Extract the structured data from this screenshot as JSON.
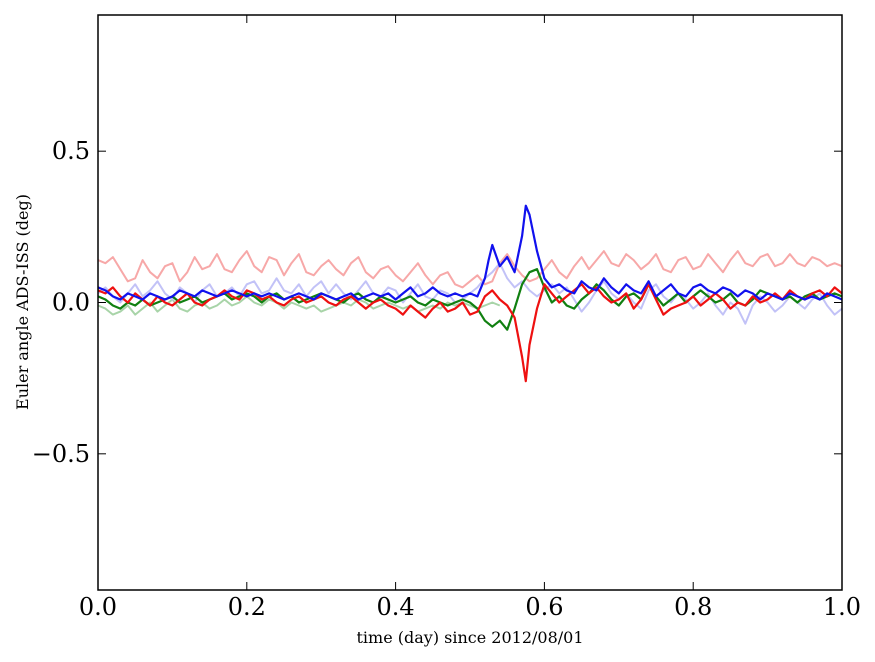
{
  "chart_data": {
    "type": "line",
    "xlabel": "time (day) since 2012/08/01",
    "ylabel": "Euler angle ADS-ISS (deg)",
    "xlim": [
      0.0,
      1.0
    ],
    "ylim": [
      -0.95,
      0.95
    ],
    "xticks": [
      0.0,
      0.2,
      0.4,
      0.6,
      0.8,
      1.0
    ],
    "xtick_labels": [
      "0.0",
      "0.2",
      "0.4",
      "0.6",
      "0.8",
      "1.0"
    ],
    "yticks": [
      -0.5,
      0.0,
      0.5
    ],
    "ytick_labels": [
      "−0.5",
      "0.0",
      "0.5"
    ],
    "grid": false,
    "series": [
      {
        "color": "#f7a8a8",
        "faint": true,
        "x": [
          0.0,
          0.01,
          0.02,
          0.03,
          0.04,
          0.05,
          0.06,
          0.07,
          0.08,
          0.09,
          0.1,
          0.11,
          0.12,
          0.13,
          0.14,
          0.15,
          0.16,
          0.17,
          0.18,
          0.19,
          0.2,
          0.21,
          0.22,
          0.23,
          0.24,
          0.25,
          0.26,
          0.27,
          0.28,
          0.29,
          0.3,
          0.31,
          0.32,
          0.33,
          0.34,
          0.35,
          0.36,
          0.37,
          0.38,
          0.39,
          0.4,
          0.41,
          0.42,
          0.43,
          0.44,
          0.45,
          0.46,
          0.47,
          0.48,
          0.49,
          0.5,
          0.51,
          0.52,
          0.53,
          0.54,
          0.55,
          0.56,
          0.57,
          0.58,
          0.59,
          0.6,
          0.61,
          0.62,
          0.63,
          0.64,
          0.65,
          0.66,
          0.67,
          0.68,
          0.69,
          0.7,
          0.71,
          0.72,
          0.73,
          0.74,
          0.75,
          0.76,
          0.77,
          0.78,
          0.79,
          0.8,
          0.81,
          0.82,
          0.83,
          0.84,
          0.85,
          0.86,
          0.87,
          0.88,
          0.89,
          0.9,
          0.91,
          0.92,
          0.93,
          0.94,
          0.95,
          0.96,
          0.97,
          0.98,
          0.99,
          1.0
        ],
        "y": [
          0.14,
          0.13,
          0.15,
          0.11,
          0.07,
          0.08,
          0.14,
          0.1,
          0.08,
          0.12,
          0.13,
          0.07,
          0.1,
          0.15,
          0.11,
          0.12,
          0.16,
          0.11,
          0.1,
          0.14,
          0.17,
          0.12,
          0.1,
          0.15,
          0.14,
          0.09,
          0.13,
          0.16,
          0.1,
          0.09,
          0.12,
          0.14,
          0.11,
          0.09,
          0.13,
          0.15,
          0.1,
          0.08,
          0.11,
          0.12,
          0.09,
          0.07,
          0.1,
          0.13,
          0.09,
          0.06,
          0.09,
          0.1,
          0.06,
          0.05,
          0.07,
          0.09,
          0.06,
          0.07,
          0.13,
          0.16,
          0.12,
          0.09,
          0.07,
          0.08,
          0.11,
          0.14,
          0.1,
          0.08,
          0.12,
          0.15,
          0.11,
          0.14,
          0.17,
          0.13,
          0.12,
          0.16,
          0.14,
          0.11,
          0.13,
          0.16,
          0.11,
          0.1,
          0.14,
          0.15,
          0.11,
          0.12,
          0.16,
          0.13,
          0.1,
          0.14,
          0.17,
          0.13,
          0.12,
          0.15,
          0.16,
          0.12,
          0.13,
          0.16,
          0.13,
          0.12,
          0.15,
          0.14,
          0.12,
          0.13,
          0.12
        ]
      },
      {
        "color": "#a8d4a8",
        "faint": true,
        "x": [
          0.0,
          0.01,
          0.02,
          0.03,
          0.04,
          0.05,
          0.06,
          0.07,
          0.08,
          0.09,
          0.1,
          0.11,
          0.12,
          0.13,
          0.14,
          0.15,
          0.16,
          0.17,
          0.18,
          0.19,
          0.2,
          0.21,
          0.22,
          0.23,
          0.24,
          0.25,
          0.26,
          0.27,
          0.28,
          0.29,
          0.3,
          0.31,
          0.32,
          0.33,
          0.34,
          0.35,
          0.36,
          0.37,
          0.38,
          0.39,
          0.4,
          0.41,
          0.42,
          0.43,
          0.44,
          0.45,
          0.46,
          0.47,
          0.48,
          0.49,
          0.5,
          0.51,
          0.52,
          0.53,
          0.54
        ],
        "y": [
          -0.01,
          -0.02,
          -0.04,
          -0.03,
          -0.01,
          -0.04,
          -0.02,
          0.0,
          -0.03,
          -0.01,
          0.01,
          -0.02,
          -0.03,
          -0.01,
          0.0,
          -0.02,
          -0.01,
          0.01,
          -0.01,
          0.0,
          0.02,
          0.0,
          -0.01,
          0.01,
          0.0,
          -0.02,
          0.0,
          -0.01,
          -0.02,
          -0.01,
          -0.03,
          -0.02,
          -0.01,
          0.0,
          -0.01,
          0.01,
          0.0,
          -0.02,
          -0.01,
          0.0,
          -0.01,
          -0.02,
          -0.01,
          -0.03,
          -0.02,
          -0.01,
          -0.02,
          0.0,
          -0.01,
          0.0,
          -0.01,
          -0.02,
          -0.01,
          0.0,
          -0.01
        ]
      },
      {
        "color": "#c2c2f7",
        "faint": true,
        "x": [
          0.0,
          0.01,
          0.02,
          0.03,
          0.04,
          0.05,
          0.06,
          0.07,
          0.08,
          0.09,
          0.1,
          0.11,
          0.12,
          0.13,
          0.14,
          0.15,
          0.16,
          0.17,
          0.18,
          0.19,
          0.2,
          0.21,
          0.22,
          0.23,
          0.24,
          0.25,
          0.26,
          0.27,
          0.28,
          0.29,
          0.3,
          0.31,
          0.32,
          0.33,
          0.34,
          0.35,
          0.36,
          0.37,
          0.38,
          0.39,
          0.4,
          0.41,
          0.42,
          0.43,
          0.44,
          0.45,
          0.46,
          0.47,
          0.48,
          0.49,
          0.5,
          0.51,
          0.52,
          0.53,
          0.54,
          0.55,
          0.56,
          0.57,
          0.58,
          0.59,
          0.6,
          0.61,
          0.62,
          0.63,
          0.64,
          0.65,
          0.66,
          0.67,
          0.68,
          0.69,
          0.7,
          0.71,
          0.72,
          0.73,
          0.74,
          0.75,
          0.76,
          0.77,
          0.78,
          0.79,
          0.8,
          0.81,
          0.82,
          0.83,
          0.84,
          0.85,
          0.86,
          0.87,
          0.88,
          0.89,
          0.9,
          0.91,
          0.92,
          0.93,
          0.94,
          0.95,
          0.96,
          0.97,
          0.98,
          0.99,
          1.0
        ],
        "y": [
          0.03,
          0.05,
          0.02,
          0.0,
          0.03,
          0.06,
          0.02,
          0.04,
          0.07,
          0.03,
          0.01,
          0.05,
          0.03,
          0.0,
          0.04,
          0.06,
          0.02,
          0.03,
          0.05,
          0.02,
          0.06,
          0.07,
          0.03,
          0.04,
          0.08,
          0.04,
          0.03,
          0.06,
          0.02,
          0.05,
          0.07,
          0.03,
          0.06,
          0.03,
          0.01,
          0.04,
          0.07,
          0.03,
          0.02,
          0.05,
          0.04,
          0.0,
          0.03,
          0.06,
          0.02,
          0.01,
          0.04,
          0.03,
          0.0,
          0.01,
          0.03,
          0.05,
          0.08,
          0.1,
          0.13,
          0.08,
          0.05,
          0.07,
          0.04,
          0.02,
          0.04,
          0.06,
          0.03,
          0.05,
          0.01,
          -0.03,
          0.0,
          0.04,
          0.07,
          0.03,
          0.01,
          0.03,
          0.0,
          -0.02,
          0.04,
          0.06,
          0.02,
          0.0,
          0.03,
          0.01,
          -0.02,
          0.0,
          0.03,
          -0.01,
          -0.04,
          0.0,
          -0.02,
          -0.07,
          -0.01,
          0.02,
          0.0,
          -0.03,
          -0.01,
          0.02,
          0.0,
          -0.02,
          0.01,
          0.03,
          -0.01,
          -0.04,
          -0.02
        ]
      },
      {
        "color": "#118011",
        "faint": false,
        "x": [
          0.0,
          0.01,
          0.02,
          0.03,
          0.04,
          0.05,
          0.06,
          0.07,
          0.08,
          0.09,
          0.1,
          0.11,
          0.12,
          0.13,
          0.14,
          0.15,
          0.16,
          0.17,
          0.18,
          0.19,
          0.2,
          0.21,
          0.22,
          0.23,
          0.24,
          0.25,
          0.26,
          0.27,
          0.28,
          0.29,
          0.3,
          0.31,
          0.32,
          0.33,
          0.34,
          0.35,
          0.36,
          0.37,
          0.38,
          0.39,
          0.4,
          0.41,
          0.42,
          0.43,
          0.44,
          0.45,
          0.46,
          0.47,
          0.48,
          0.49,
          0.5,
          0.51,
          0.52,
          0.53,
          0.54,
          0.55,
          0.56,
          0.57,
          0.58,
          0.59,
          0.6,
          0.61,
          0.62,
          0.63,
          0.64,
          0.65,
          0.66,
          0.67,
          0.68,
          0.69,
          0.7,
          0.71,
          0.72,
          0.73,
          0.74,
          0.75,
          0.76,
          0.77,
          0.78,
          0.79,
          0.8,
          0.81,
          0.82,
          0.83,
          0.84,
          0.85,
          0.86,
          0.87,
          0.88,
          0.89,
          0.9,
          0.91,
          0.92,
          0.93,
          0.94,
          0.95,
          0.96,
          0.97,
          0.98,
          0.99,
          1.0
        ],
        "y": [
          0.02,
          0.01,
          -0.01,
          -0.02,
          0.0,
          -0.01,
          0.01,
          -0.01,
          0.0,
          0.01,
          0.02,
          0.0,
          0.01,
          0.02,
          0.0,
          0.01,
          0.02,
          0.03,
          0.01,
          0.02,
          0.03,
          0.02,
          0.0,
          0.02,
          0.03,
          0.01,
          0.02,
          0.0,
          0.01,
          0.02,
          0.03,
          0.02,
          0.01,
          0.0,
          0.02,
          0.03,
          0.01,
          0.0,
          0.02,
          0.01,
          0.0,
          0.01,
          0.02,
          0.0,
          -0.01,
          0.01,
          0.0,
          -0.01,
          0.0,
          0.01,
          0.0,
          -0.02,
          -0.06,
          -0.08,
          -0.06,
          -0.09,
          -0.02,
          0.06,
          0.1,
          0.11,
          0.05,
          0.0,
          0.02,
          -0.01,
          -0.02,
          0.01,
          0.03,
          0.06,
          0.04,
          0.01,
          -0.01,
          0.02,
          0.03,
          0.01,
          0.06,
          0.02,
          -0.01,
          0.01,
          0.03,
          0.0,
          0.02,
          0.04,
          0.02,
          0.0,
          0.01,
          0.03,
          0.0,
          -0.01,
          0.01,
          0.04,
          0.03,
          0.02,
          0.01,
          0.02,
          0.0,
          0.02,
          0.03,
          0.01,
          0.02,
          0.03,
          0.02
        ]
      },
      {
        "color": "#ee1111",
        "faint": false,
        "x": [
          0.0,
          0.01,
          0.02,
          0.03,
          0.04,
          0.05,
          0.06,
          0.07,
          0.08,
          0.09,
          0.1,
          0.11,
          0.12,
          0.13,
          0.14,
          0.15,
          0.16,
          0.17,
          0.18,
          0.19,
          0.2,
          0.21,
          0.22,
          0.23,
          0.24,
          0.25,
          0.26,
          0.27,
          0.28,
          0.29,
          0.3,
          0.31,
          0.32,
          0.33,
          0.34,
          0.35,
          0.36,
          0.37,
          0.38,
          0.39,
          0.4,
          0.41,
          0.42,
          0.43,
          0.44,
          0.45,
          0.46,
          0.47,
          0.48,
          0.49,
          0.5,
          0.51,
          0.52,
          0.53,
          0.54,
          0.55,
          0.56,
          0.57,
          0.575,
          0.58,
          0.59,
          0.6,
          0.61,
          0.62,
          0.63,
          0.64,
          0.65,
          0.66,
          0.67,
          0.68,
          0.69,
          0.7,
          0.71,
          0.72,
          0.73,
          0.74,
          0.75,
          0.76,
          0.77,
          0.78,
          0.79,
          0.8,
          0.81,
          0.82,
          0.83,
          0.84,
          0.85,
          0.86,
          0.87,
          0.88,
          0.89,
          0.9,
          0.91,
          0.92,
          0.93,
          0.94,
          0.95,
          0.96,
          0.97,
          0.98,
          0.99,
          1.0
        ],
        "y": [
          0.04,
          0.03,
          0.05,
          0.02,
          0.0,
          0.03,
          0.01,
          -0.01,
          0.02,
          0.0,
          -0.01,
          0.01,
          0.03,
          0.0,
          -0.01,
          0.01,
          0.02,
          0.04,
          0.02,
          0.01,
          0.04,
          0.03,
          0.01,
          0.02,
          0.0,
          -0.01,
          0.01,
          0.02,
          0.0,
          0.01,
          0.02,
          0.0,
          -0.01,
          0.01,
          0.02,
          0.0,
          -0.02,
          0.0,
          0.01,
          -0.01,
          -0.02,
          -0.04,
          -0.01,
          -0.03,
          -0.05,
          -0.02,
          0.0,
          -0.03,
          -0.02,
          0.0,
          -0.04,
          -0.03,
          0.02,
          0.04,
          0.01,
          -0.01,
          -0.05,
          -0.18,
          -0.26,
          -0.14,
          -0.02,
          0.06,
          0.03,
          0.0,
          0.02,
          0.04,
          0.06,
          0.03,
          0.05,
          0.02,
          0.0,
          0.01,
          0.03,
          -0.02,
          0.01,
          0.06,
          0.01,
          -0.04,
          -0.02,
          -0.01,
          0.0,
          0.02,
          -0.01,
          0.01,
          0.03,
          0.01,
          -0.02,
          0.0,
          -0.01,
          0.02,
          0.0,
          0.01,
          0.03,
          0.01,
          0.04,
          0.02,
          0.01,
          0.03,
          0.04,
          0.02,
          0.05,
          0.03
        ]
      },
      {
        "color": "#1111ee",
        "faint": false,
        "x": [
          0.0,
          0.01,
          0.02,
          0.03,
          0.04,
          0.05,
          0.06,
          0.07,
          0.08,
          0.09,
          0.1,
          0.11,
          0.12,
          0.13,
          0.14,
          0.15,
          0.16,
          0.17,
          0.18,
          0.19,
          0.2,
          0.21,
          0.22,
          0.23,
          0.24,
          0.25,
          0.26,
          0.27,
          0.28,
          0.29,
          0.3,
          0.31,
          0.32,
          0.33,
          0.34,
          0.35,
          0.36,
          0.37,
          0.38,
          0.39,
          0.4,
          0.41,
          0.42,
          0.43,
          0.44,
          0.45,
          0.46,
          0.47,
          0.48,
          0.49,
          0.5,
          0.51,
          0.52,
          0.525,
          0.53,
          0.54,
          0.55,
          0.56,
          0.57,
          0.575,
          0.58,
          0.59,
          0.6,
          0.61,
          0.62,
          0.63,
          0.64,
          0.65,
          0.66,
          0.67,
          0.68,
          0.69,
          0.7,
          0.71,
          0.72,
          0.73,
          0.74,
          0.75,
          0.76,
          0.77,
          0.78,
          0.79,
          0.8,
          0.81,
          0.82,
          0.83,
          0.84,
          0.85,
          0.86,
          0.87,
          0.88,
          0.89,
          0.9,
          0.91,
          0.92,
          0.93,
          0.94,
          0.95,
          0.96,
          0.97,
          0.98,
          0.99,
          1.0
        ],
        "y": [
          0.05,
          0.04,
          0.02,
          0.01,
          0.03,
          0.02,
          0.01,
          0.03,
          0.02,
          0.01,
          0.02,
          0.04,
          0.03,
          0.02,
          0.04,
          0.03,
          0.02,
          0.03,
          0.04,
          0.03,
          0.02,
          0.03,
          0.02,
          0.03,
          0.02,
          0.01,
          0.02,
          0.03,
          0.02,
          0.01,
          0.03,
          0.02,
          0.01,
          0.02,
          0.03,
          0.01,
          0.02,
          0.03,
          0.02,
          0.03,
          0.01,
          0.03,
          0.05,
          0.02,
          0.03,
          0.05,
          0.03,
          0.02,
          0.03,
          0.02,
          0.03,
          0.02,
          0.08,
          0.14,
          0.19,
          0.12,
          0.15,
          0.1,
          0.22,
          0.32,
          0.29,
          0.17,
          0.08,
          0.05,
          0.06,
          0.04,
          0.03,
          0.07,
          0.05,
          0.04,
          0.08,
          0.05,
          0.03,
          0.06,
          0.04,
          0.03,
          0.07,
          0.02,
          0.04,
          0.06,
          0.03,
          0.02,
          0.05,
          0.06,
          0.04,
          0.03,
          0.05,
          0.04,
          0.02,
          0.04,
          0.03,
          0.01,
          0.03,
          0.02,
          0.01,
          0.03,
          0.02,
          0.01,
          0.02,
          0.01,
          0.03,
          0.02,
          0.01
        ]
      }
    ]
  }
}
